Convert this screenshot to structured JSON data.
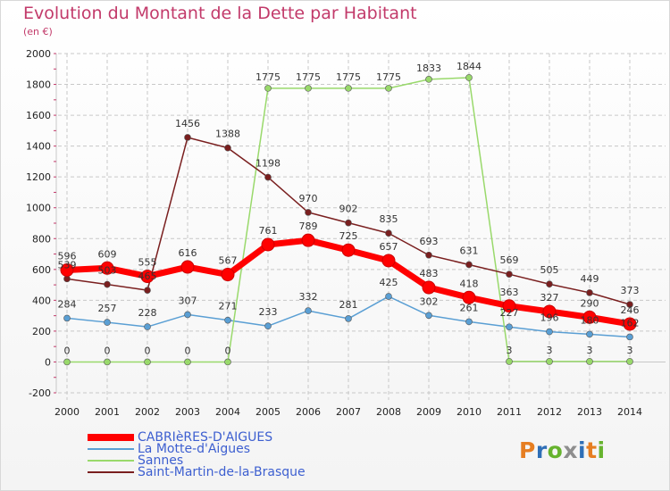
{
  "header": {
    "title": "Evolution du Montant de la Dette par Habitant",
    "subtitle": "(en €)"
  },
  "logo": {
    "text": "Proxiti",
    "letters": [
      "P",
      "r",
      "o",
      "x",
      "i",
      "t",
      "i"
    ]
  },
  "colors": {
    "title": "#c23a6a",
    "grid": "#c8c8c8",
    "tick_marks": "#c23a6a",
    "cabrieres": "#ff0000",
    "motte": "#5a9fd4",
    "sannes": "#99d96b",
    "saint_martin": "#7a1f1f",
    "logo": [
      "#e67e22",
      "#2f6fb7",
      "#66b32e",
      "#8e8e8e",
      "#2f6fb7",
      "#e67e22",
      "#66b32e"
    ]
  },
  "chart_data": {
    "type": "line",
    "title": "Evolution du Montant de la Dette par Habitant",
    "ylabel": "(en €)",
    "xlabel": "",
    "ylim": [
      -200,
      2000
    ],
    "yticks": [
      -200,
      0,
      200,
      400,
      600,
      800,
      1000,
      1200,
      1400,
      1600,
      1800,
      2000
    ],
    "grid": true,
    "legend_position": "bottom-left",
    "x": [
      "2000",
      "2001",
      "2002",
      "2003",
      "2004",
      "2005",
      "2006",
      "2007",
      "2008",
      "2009",
      "2010",
      "2011",
      "2012",
      "2013",
      "2014"
    ],
    "series": [
      {
        "name": "CABRIèRES-D'AIGUES",
        "key": "cabrieres",
        "values": [
          596,
          609,
          555,
          616,
          567,
          761,
          789,
          725,
          657,
          483,
          418,
          363,
          327,
          290,
          246
        ]
      },
      {
        "name": "La Motte-d'Aigues",
        "key": "motte",
        "values": [
          284,
          257,
          228,
          307,
          271,
          233,
          332,
          281,
          425,
          302,
          261,
          227,
          196,
          180,
          162
        ]
      },
      {
        "name": "Sannes",
        "key": "sannes",
        "values": [
          0,
          0,
          0,
          0,
          0,
          1775,
          1775,
          1775,
          1775,
          1833,
          1844,
          3,
          3,
          3,
          3
        ]
      },
      {
        "name": "Saint-Martin-de-la-Brasque",
        "key": "saint_martin",
        "values": [
          539,
          503,
          465,
          1456,
          1388,
          1198,
          970,
          902,
          835,
          693,
          631,
          569,
          505,
          449,
          373
        ]
      }
    ]
  }
}
